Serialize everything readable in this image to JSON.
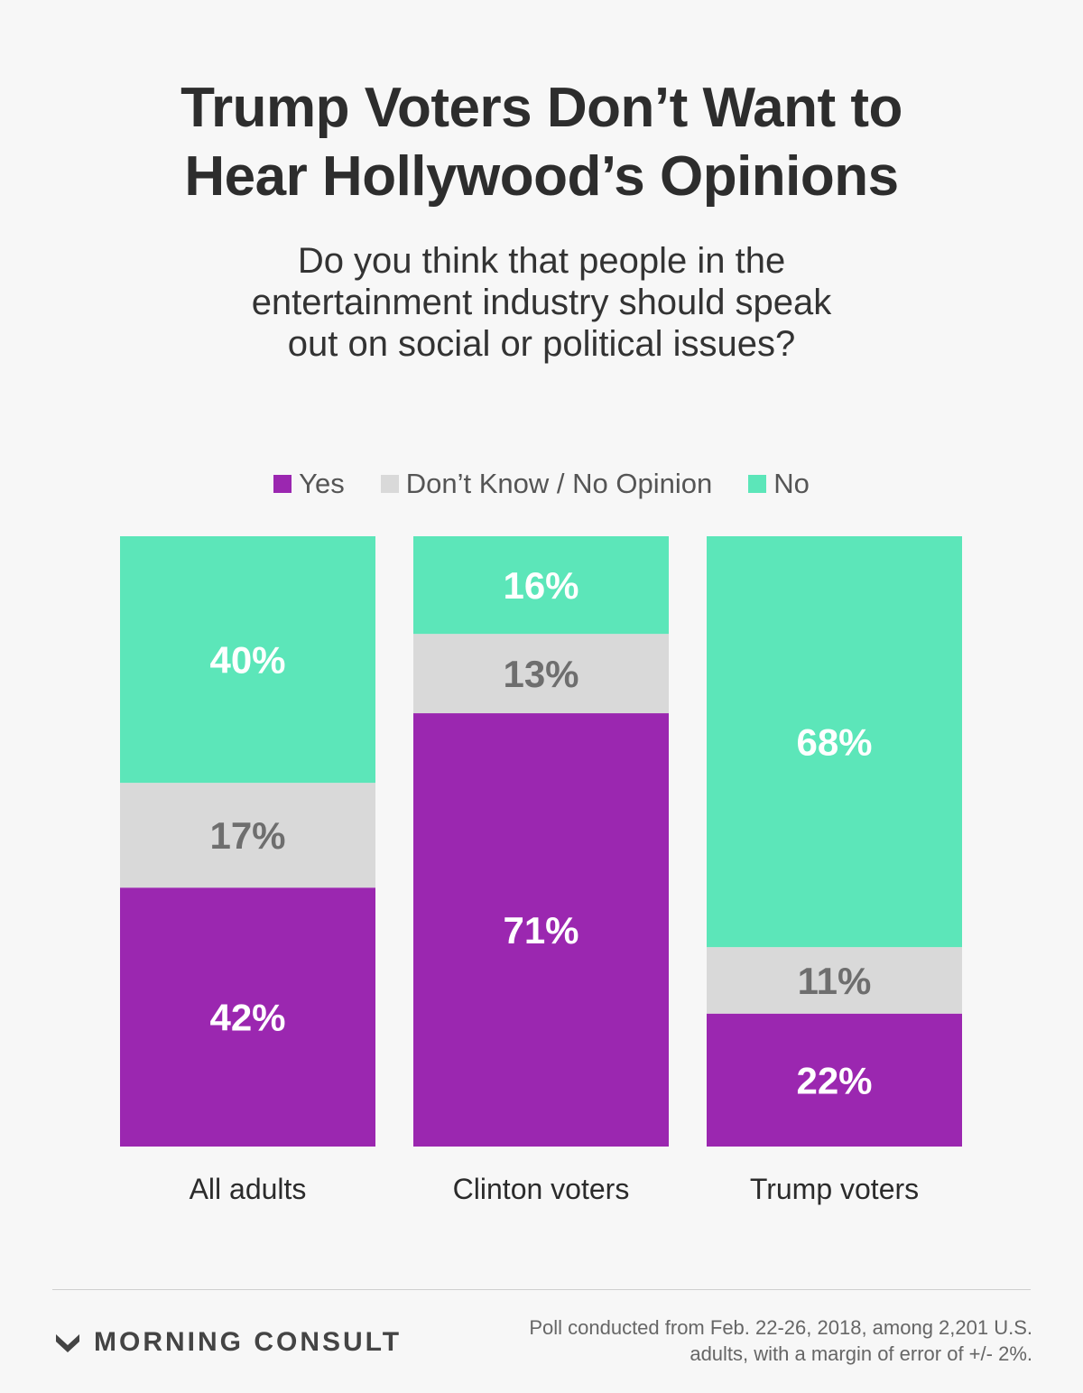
{
  "title_line1": "Trump Voters Don’t Want to",
  "title_line2": "Hear Hollywood’s Opinions",
  "subtitle_line1": "Do you think that people in the",
  "subtitle_line2": "entertainment industry should speak",
  "subtitle_line3": "out on social or political issues?",
  "legend": [
    {
      "label": "Yes",
      "color": "#9b27b0"
    },
    {
      "label": "Don’t Know / No Opinion",
      "color": "#d9d9d9"
    },
    {
      "label": "No",
      "color": "#5ce6b9"
    }
  ],
  "chart_data": {
    "type": "bar",
    "stacked": true,
    "categories": [
      "All adults",
      "Clinton voters",
      "Trump voters"
    ],
    "series": [
      {
        "name": "Yes",
        "values": [
          42,
          71,
          22
        ],
        "labels": [
          "42%",
          "71%",
          "22%"
        ],
        "color": "#9b27b0",
        "label_color": "#ffffff"
      },
      {
        "name": "Don’t Know / No Opinion",
        "values": [
          17,
          13,
          11
        ],
        "labels": [
          "17%",
          "13%",
          "11%"
        ],
        "color": "#d9d9d9",
        "label_color": "#6e6e6e"
      },
      {
        "name": "No",
        "values": [
          40,
          16,
          68
        ],
        "labels": [
          "40%",
          "16%",
          "68%"
        ],
        "color": "#5ce6b9",
        "label_color": "#ffffff"
      }
    ],
    "ylim": [
      0,
      100
    ],
    "legend_position": "top"
  },
  "brand": "MORNING CONSULT",
  "footnote_line1": "Poll conducted from Feb. 22-26, 2018, among 2,201 U.S.",
  "footnote_line2": "adults, with a margin of error of +/- 2%."
}
